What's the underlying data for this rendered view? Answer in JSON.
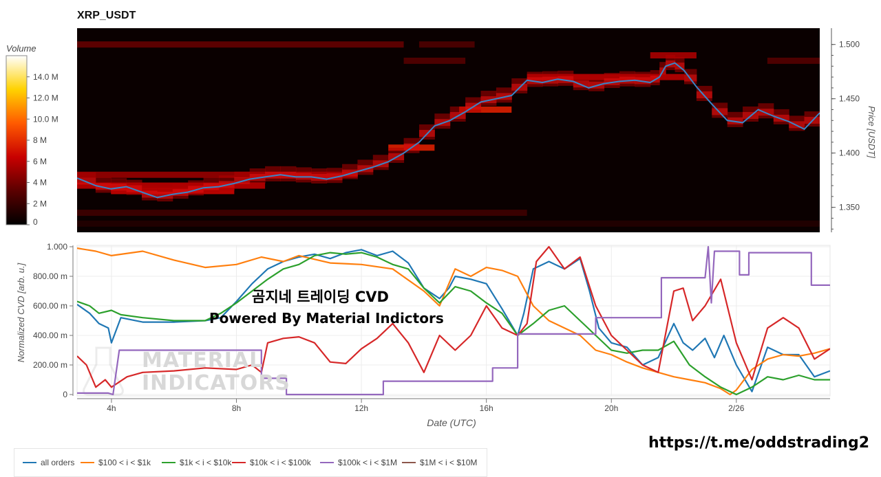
{
  "title": "XRP_USDT",
  "overlay": {
    "line1": "곰지네 트레이딩 CVD",
    "line2": "Powered By Material Indictors"
  },
  "watermark": {
    "line1": "MATERIAL",
    "line2": "INDICATORS"
  },
  "url": "https://t.me/oddstrading2",
  "colorbar": {
    "title": "Volume",
    "ticks": [
      "0",
      "2 M",
      "4 M",
      "6 M",
      "8 M",
      "10.0 M",
      "12.0 M",
      "14.0 M"
    ],
    "tick_values": [
      0,
      2,
      4,
      6,
      8,
      10,
      12,
      14
    ],
    "max": 16
  },
  "legend": {
    "items": [
      {
        "label": "all orders",
        "color": "#1f77b4"
      },
      {
        "label": "$100 < i < $1k",
        "color": "#ff7f0e"
      },
      {
        "label": "$1k < i < $10k",
        "color": "#2ca02c"
      },
      {
        "label": "$10k < i < $100k",
        "color": "#d62728"
      },
      {
        "label": "$100k < i < $1M",
        "color": "#9467bd"
      },
      {
        "label": "$1M < i < $10M",
        "color": "#8c564b"
      }
    ]
  },
  "chart_data": [
    {
      "type": "heatmap",
      "title": "XRP_USDT",
      "ylabel": "Price [USDT]",
      "yticks": [
        "1.350",
        "1.400",
        "1.450",
        "1.500"
      ],
      "ytick_values": [
        1.35,
        1.4,
        1.45,
        1.5
      ],
      "ylim": [
        1.327,
        1.515
      ],
      "x_range_hours": [
        2.9,
        27.0
      ],
      "price_line": {
        "name": "price",
        "x": [
          2.9,
          3.5,
          4.0,
          4.5,
          5.0,
          5.5,
          6.0,
          6.5,
          7.0,
          7.5,
          8.0,
          8.5,
          9.0,
          9.5,
          10.0,
          10.5,
          11.0,
          11.5,
          12.0,
          12.5,
          13.0,
          13.5,
          14.0,
          14.5,
          15.0,
          15.5,
          16.0,
          16.5,
          17.0,
          17.5,
          18.0,
          18.5,
          19.0,
          19.5,
          20.0,
          20.5,
          21.0,
          21.5,
          21.8,
          22.0,
          22.3,
          22.6,
          23.0,
          23.5,
          24.0,
          24.5,
          25.0,
          25.5,
          26.0,
          26.5,
          27.0
        ],
        "y": [
          1.377,
          1.37,
          1.367,
          1.369,
          1.364,
          1.359,
          1.362,
          1.364,
          1.368,
          1.369,
          1.372,
          1.376,
          1.378,
          1.38,
          1.378,
          1.378,
          1.376,
          1.379,
          1.383,
          1.387,
          1.392,
          1.4,
          1.41,
          1.425,
          1.43,
          1.438,
          1.447,
          1.45,
          1.453,
          1.467,
          1.465,
          1.468,
          1.466,
          1.46,
          1.464,
          1.466,
          1.467,
          1.465,
          1.47,
          1.48,
          1.483,
          1.476,
          1.461,
          1.445,
          1.43,
          1.428,
          1.44,
          1.434,
          1.429,
          1.422,
          1.437
        ]
      },
      "volume_bands": [
        {
          "price": 1.5,
          "x_start": 2.9,
          "x_end": 13.5,
          "volume": 3.5
        },
        {
          "price": 1.5,
          "x_start": 14.0,
          "x_end": 15.8,
          "volume": 2.8
        },
        {
          "price": 1.485,
          "x_start": 13.5,
          "x_end": 15.5,
          "volume": 3.0
        },
        {
          "price": 1.485,
          "x_start": 25.3,
          "x_end": 27.0,
          "volume": 3.0
        },
        {
          "price": 1.38,
          "x_start": 2.9,
          "x_end": 12.0,
          "volume": 5.0
        },
        {
          "price": 1.37,
          "x_start": 2.9,
          "x_end": 9.0,
          "volume": 6.0
        },
        {
          "price": 1.365,
          "x_start": 4.0,
          "x_end": 8.0,
          "volume": 6.5
        },
        {
          "price": 1.405,
          "x_start": 13.0,
          "x_end": 14.5,
          "volume": 7.5
        },
        {
          "price": 1.44,
          "x_start": 15.3,
          "x_end": 17.0,
          "volume": 7.5
        },
        {
          "price": 1.47,
          "x_start": 17.5,
          "x_end": 22.6,
          "volume": 6.0
        },
        {
          "price": 1.49,
          "x_start": 21.5,
          "x_end": 23.0,
          "volume": 5.5
        },
        {
          "price": 1.345,
          "x_start": 2.9,
          "x_end": 17.5,
          "volume": 2.2
        },
        {
          "price": 1.335,
          "x_start": 2.9,
          "x_end": 27.0,
          "volume": 1.2
        }
      ]
    },
    {
      "type": "line",
      "xlabel": "Date (UTC)",
      "ylabel": "Normalized CVD [arb. u.]",
      "xticks": [
        "4h",
        "8h",
        "12h",
        "16h",
        "20h",
        "2/26"
      ],
      "xtick_values": [
        4,
        8,
        12,
        16,
        20,
        24
      ],
      "yticks": [
        "0",
        "200.00 m",
        "400.00 m",
        "600.00 m",
        "800.00 m",
        "1.000"
      ],
      "ytick_values": [
        0,
        0.2,
        0.4,
        0.6,
        0.8,
        1.0
      ],
      "xlim": [
        2.9,
        27.0
      ],
      "ylim": [
        0,
        1.0
      ],
      "series": [
        {
          "name": "all orders",
          "x": [
            2.9,
            3.3,
            3.6,
            3.9,
            4.0,
            4.3,
            5.0,
            6.0,
            7.0,
            7.5,
            8.0,
            8.5,
            9.0,
            9.5,
            10.0,
            10.5,
            11.0,
            11.5,
            12.0,
            12.5,
            13.0,
            13.5,
            14.0,
            14.5,
            14.8,
            15.0,
            15.5,
            16.0,
            16.5,
            17.0,
            17.2,
            17.5,
            18.0,
            18.5,
            19.0,
            19.3,
            19.6,
            20.0,
            20.5,
            21.0,
            21.5,
            22.0,
            22.3,
            22.6,
            23.0,
            23.3,
            23.6,
            24.0,
            24.5,
            25.0,
            25.5,
            26.0,
            26.5,
            27.0
          ],
          "y": [
            0.61,
            0.55,
            0.48,
            0.45,
            0.35,
            0.52,
            0.49,
            0.49,
            0.5,
            0.52,
            0.63,
            0.75,
            0.85,
            0.9,
            0.93,
            0.95,
            0.92,
            0.96,
            0.98,
            0.94,
            0.97,
            0.89,
            0.72,
            0.65,
            0.72,
            0.8,
            0.78,
            0.75,
            0.58,
            0.4,
            0.55,
            0.85,
            0.9,
            0.85,
            0.92,
            0.7,
            0.45,
            0.35,
            0.32,
            0.2,
            0.25,
            0.48,
            0.35,
            0.3,
            0.38,
            0.25,
            0.4,
            0.2,
            0.02,
            0.32,
            0.27,
            0.27,
            0.12,
            0.16
          ]
        },
        {
          "name": "$100 < i < $1k",
          "x": [
            2.9,
            3.5,
            4.0,
            5.0,
            6.0,
            7.0,
            8.0,
            8.8,
            9.5,
            10.0,
            11.0,
            12.0,
            13.0,
            14.0,
            14.5,
            15.0,
            15.5,
            16.0,
            16.5,
            17.0,
            17.5,
            18.0,
            18.5,
            19.0,
            19.5,
            20.0,
            20.5,
            21.0,
            21.5,
            22.0,
            22.5,
            23.0,
            23.5,
            23.8,
            24.0,
            24.5,
            25.0,
            25.5,
            26.0,
            26.5,
            27.0
          ],
          "y": [
            0.99,
            0.97,
            0.94,
            0.97,
            0.91,
            0.86,
            0.88,
            0.93,
            0.9,
            0.94,
            0.89,
            0.88,
            0.85,
            0.7,
            0.6,
            0.85,
            0.8,
            0.86,
            0.84,
            0.8,
            0.6,
            0.5,
            0.45,
            0.4,
            0.3,
            0.27,
            0.22,
            0.18,
            0.15,
            0.12,
            0.1,
            0.08,
            0.04,
            0.0,
            0.03,
            0.17,
            0.24,
            0.27,
            0.26,
            0.28,
            0.31
          ]
        },
        {
          "name": "$1k < i < $10k",
          "x": [
            2.9,
            3.3,
            3.6,
            4.0,
            4.3,
            5.0,
            6.0,
            7.0,
            7.5,
            8.0,
            8.5,
            9.0,
            9.5,
            10.0,
            10.5,
            11.0,
            11.5,
            12.0,
            12.5,
            13.0,
            13.5,
            14.0,
            14.5,
            15.0,
            15.5,
            16.0,
            16.5,
            17.0,
            17.5,
            18.0,
            18.5,
            19.0,
            19.5,
            20.0,
            20.5,
            21.0,
            21.5,
            22.0,
            22.5,
            23.0,
            23.5,
            24.0,
            24.5,
            25.0,
            25.5,
            26.0,
            26.5,
            27.0
          ],
          "y": [
            0.63,
            0.6,
            0.55,
            0.57,
            0.54,
            0.52,
            0.5,
            0.5,
            0.55,
            0.62,
            0.7,
            0.78,
            0.85,
            0.88,
            0.94,
            0.96,
            0.95,
            0.96,
            0.93,
            0.88,
            0.85,
            0.72,
            0.62,
            0.73,
            0.7,
            0.62,
            0.55,
            0.4,
            0.48,
            0.57,
            0.6,
            0.5,
            0.4,
            0.3,
            0.28,
            0.3,
            0.3,
            0.36,
            0.2,
            0.12,
            0.05,
            0.0,
            0.05,
            0.12,
            0.1,
            0.13,
            0.1,
            0.1
          ]
        },
        {
          "name": "$10k < i < $100k",
          "x": [
            2.9,
            3.2,
            3.5,
            3.8,
            4.0,
            4.5,
            5.0,
            6.0,
            7.0,
            8.0,
            8.5,
            8.8,
            9.0,
            9.5,
            10.0,
            10.5,
            11.0,
            11.5,
            12.0,
            12.5,
            13.0,
            13.5,
            14.0,
            14.5,
            15.0,
            15.5,
            16.0,
            16.5,
            17.0,
            17.3,
            17.6,
            18.0,
            18.5,
            19.0,
            19.5,
            20.0,
            20.5,
            21.0,
            21.5,
            22.0,
            22.3,
            22.6,
            23.0,
            23.5,
            24.0,
            24.5,
            25.0,
            25.5,
            26.0,
            26.5,
            27.0
          ],
          "y": [
            0.26,
            0.2,
            0.05,
            0.1,
            0.05,
            0.12,
            0.15,
            0.16,
            0.18,
            0.17,
            0.2,
            0.15,
            0.35,
            0.38,
            0.39,
            0.35,
            0.22,
            0.21,
            0.31,
            0.38,
            0.48,
            0.35,
            0.15,
            0.4,
            0.3,
            0.4,
            0.6,
            0.45,
            0.4,
            0.48,
            0.9,
            1.0,
            0.85,
            0.93,
            0.6,
            0.4,
            0.3,
            0.2,
            0.15,
            0.7,
            0.72,
            0.5,
            0.6,
            0.78,
            0.35,
            0.1,
            0.45,
            0.52,
            0.45,
            0.24,
            0.31
          ]
        },
        {
          "name": "$100k < i < $1M",
          "x": [
            2.9,
            3.9,
            4.05,
            4.25,
            8.8,
            8.8,
            9.6,
            9.6,
            12.7,
            12.7,
            16.2,
            16.2,
            17.0,
            17.0,
            19.5,
            19.5,
            21.6,
            21.6,
            23.0,
            23.1,
            23.2,
            23.3,
            23.5,
            23.6,
            24.1,
            24.1,
            24.4,
            24.4,
            26.4,
            26.4,
            27.0
          ],
          "y": [
            0.01,
            0.01,
            0.0,
            0.3,
            0.3,
            0.11,
            0.11,
            0.0,
            0.0,
            0.09,
            0.09,
            0.18,
            0.18,
            0.41,
            0.41,
            0.52,
            0.52,
            0.79,
            0.79,
            1.0,
            0.62,
            0.97,
            0.97,
            0.97,
            0.97,
            0.81,
            0.81,
            0.96,
            0.96,
            0.74,
            0.74
          ]
        },
        {
          "name": "$1M < i < $10M",
          "x": [],
          "y": []
        }
      ]
    }
  ]
}
